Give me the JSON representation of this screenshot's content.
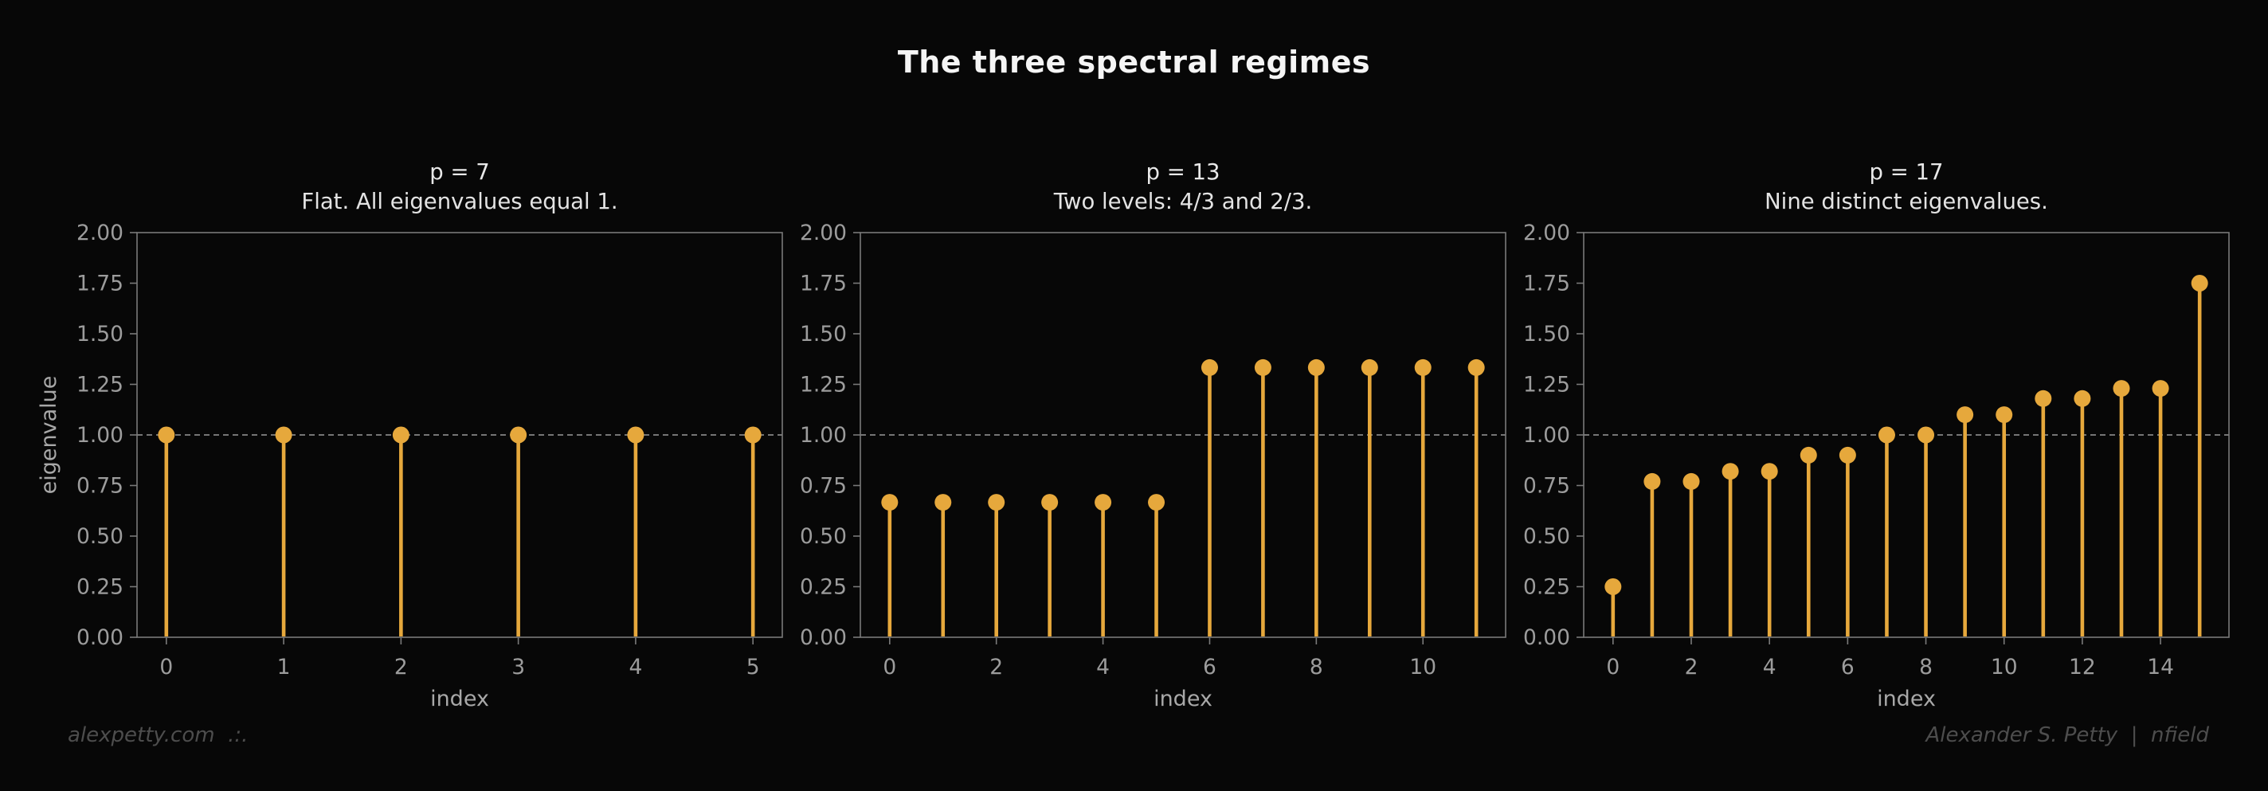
{
  "page": {
    "title": "The three spectral regimes",
    "background": "#070707"
  },
  "colors": {
    "stem": "#E6A83C",
    "marker": "#E6A83C",
    "ref_dashed": "#9a9a9a",
    "spine": "#7a7a7a",
    "tick_label": "#9c9c9c",
    "axis_label": "#a8a8a8",
    "subplot_title": "#e8e8e8",
    "figure_title": "#f5f5f5",
    "footer": "#4d4d4d"
  },
  "footer": {
    "left": "alexpetty.com  .:.",
    "right": "Alexander S. Petty  |  nfield"
  },
  "chart_data": [
    {
      "type": "stem",
      "title": "p = 7",
      "subtitle": "Flat. All eigenvalues equal 1.",
      "xlabel": "index",
      "ylabel": "eigenvalue",
      "x": [
        0,
        1,
        2,
        3,
        4,
        5
      ],
      "values": [
        1.0,
        1.0,
        1.0,
        1.0,
        1.0,
        1.0
      ],
      "xticks": [
        0,
        1,
        2,
        3,
        4,
        5
      ],
      "yticks": [
        0.0,
        0.25,
        0.5,
        0.75,
        1.0,
        1.25,
        1.5,
        1.75,
        2.0
      ],
      "ylim": [
        0,
        2
      ],
      "ref_line": 1.0,
      "grid": false,
      "legend": null
    },
    {
      "type": "stem",
      "title": "p = 13",
      "subtitle": "Two levels: 4/3 and 2/3.",
      "xlabel": "index",
      "ylabel": "",
      "x": [
        0,
        1,
        2,
        3,
        4,
        5,
        6,
        7,
        8,
        9,
        10,
        11
      ],
      "values": [
        0.667,
        0.667,
        0.667,
        0.667,
        0.667,
        0.667,
        1.333,
        1.333,
        1.333,
        1.333,
        1.333,
        1.333
      ],
      "xticks": [
        0,
        2,
        4,
        6,
        8,
        10
      ],
      "yticks": [
        0.0,
        0.25,
        0.5,
        0.75,
        1.0,
        1.25,
        1.5,
        1.75,
        2.0
      ],
      "ylim": [
        0,
        2
      ],
      "ref_line": 1.0,
      "grid": false,
      "legend": null
    },
    {
      "type": "stem",
      "title": "p = 17",
      "subtitle": "Nine distinct eigenvalues.",
      "xlabel": "index",
      "ylabel": "",
      "x": [
        0,
        1,
        2,
        3,
        4,
        5,
        6,
        7,
        8,
        9,
        10,
        11,
        12,
        13,
        14,
        15
      ],
      "values": [
        0.25,
        0.77,
        0.77,
        0.82,
        0.82,
        0.9,
        0.9,
        1.0,
        1.0,
        1.1,
        1.1,
        1.18,
        1.18,
        1.23,
        1.23,
        1.75
      ],
      "xticks": [
        0,
        2,
        4,
        6,
        8,
        10,
        12,
        14
      ],
      "yticks": [
        0.0,
        0.25,
        0.5,
        0.75,
        1.0,
        1.25,
        1.5,
        1.75,
        2.0
      ],
      "ylim": [
        0,
        2
      ],
      "ref_line": 1.0,
      "grid": false,
      "legend": null
    }
  ]
}
